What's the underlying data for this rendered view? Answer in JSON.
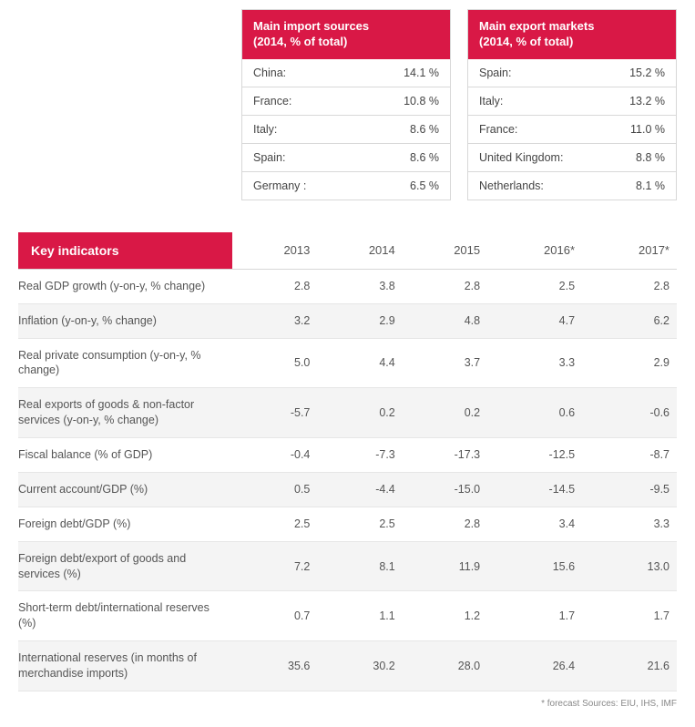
{
  "accent_color": "#d91846",
  "border_color": "#d8d8d8",
  "alt_row_bg": "#f4f4f4",
  "import_card": {
    "title_line1": "Main import sources",
    "title_line2": "(2014, % of total)",
    "rows": [
      {
        "label": "China:",
        "value": "14.1 %"
      },
      {
        "label": "France:",
        "value": "10.8 %"
      },
      {
        "label": "Italy:",
        "value": "8.6 %"
      },
      {
        "label": "Spain:",
        "value": "8.6 %"
      },
      {
        "label": "Germany :",
        "value": "6.5 %"
      }
    ]
  },
  "export_card": {
    "title_line1": "Main export markets",
    "title_line2": "(2014, % of total)",
    "rows": [
      {
        "label": "Spain:",
        "value": "15.2 %"
      },
      {
        "label": "Italy:",
        "value": "13.2 %"
      },
      {
        "label": "France:",
        "value": "11.0 %"
      },
      {
        "label": "United Kingdom:",
        "value": "8.8 %"
      },
      {
        "label": "Netherlands:",
        "value": "8.1 %"
      }
    ]
  },
  "indicators": {
    "header_label": "Key indicators",
    "years": [
      "2013",
      "2014",
      "2015",
      "2016*",
      "2017*"
    ],
    "rows": [
      {
        "label": "Real GDP growth (y-on-y, % change)",
        "v": [
          "2.8",
          "3.8",
          "2.8",
          "2.5",
          "2.8"
        ]
      },
      {
        "label": "Inflation (y-on-y, % change)",
        "v": [
          "3.2",
          "2.9",
          "4.8",
          "4.7",
          "6.2"
        ]
      },
      {
        "label": "Real private consumption (y-on-y, % change)",
        "v": [
          "5.0",
          "4.4",
          "3.7",
          "3.3",
          "2.9"
        ]
      },
      {
        "label": "Real exports of goods & non-factor services (y-on-y, % change)",
        "v": [
          "-5.7",
          "0.2",
          "0.2",
          "0.6",
          "-0.6"
        ]
      },
      {
        "label": "Fiscal balance (% of GDP)",
        "v": [
          "-0.4",
          "-7.3",
          "-17.3",
          "-12.5",
          "-8.7"
        ]
      },
      {
        "label": "Current account/GDP (%)",
        "v": [
          "0.5",
          "-4.4",
          "-15.0",
          "-14.5",
          "-9.5"
        ]
      },
      {
        "label": "Foreign debt/GDP (%)",
        "v": [
          "2.5",
          "2.5",
          "2.8",
          "3.4",
          "3.3"
        ]
      },
      {
        "label": "Foreign debt/export of goods and services (%)",
        "v": [
          "7.2",
          "8.1",
          "11.9",
          "15.6",
          "13.0"
        ]
      },
      {
        "label": "Short-term debt/international reserves (%)",
        "v": [
          "0.7",
          "1.1",
          "1.2",
          "1.7",
          "1.7"
        ]
      },
      {
        "label": "International reserves (in months of merchandise imports)",
        "v": [
          "35.6",
          "30.2",
          "28.0",
          "26.4",
          "21.6"
        ]
      }
    ]
  },
  "footnote": "* forecast    Sources: EIU, IHS, IMF"
}
